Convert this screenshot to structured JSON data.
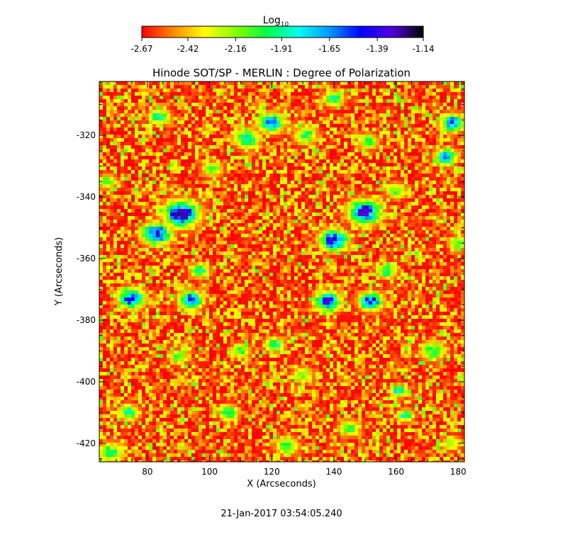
{
  "chart_data": {
    "type": "heatmap",
    "title": "Hinode SOT/SP - MERLIN : Degree of Polarization",
    "xlabel": "X (Arcseconds)",
    "ylabel": "Y (Arcseconds)",
    "timestamp": "21-Jan-2017 03:54:05.240",
    "xlim": [
      64.5,
      182
    ],
    "ylim": [
      -426,
      -302.5
    ],
    "x_ticks": [
      80,
      100,
      120,
      140,
      160,
      180
    ],
    "x_tick_labels": [
      "80",
      "100",
      "120",
      "140",
      "160",
      "180"
    ],
    "y_ticks": [
      -320,
      -340,
      -360,
      -380,
      -400,
      -420
    ],
    "y_tick_labels": [
      "-320",
      "-340",
      "-360",
      "-380",
      "-400",
      "-420"
    ],
    "colorbar": {
      "label": "Log",
      "label_subscript": "10",
      "range": [
        -2.67,
        -1.14
      ],
      "ticks": [
        -2.67,
        -2.42,
        -2.16,
        -1.91,
        -1.65,
        -1.39,
        -1.14
      ],
      "tick_labels": [
        "-2.67",
        "-2.42",
        "-2.16",
        "-1.91",
        "-1.65",
        "-1.39",
        "-1.14"
      ],
      "colormap": [
        "#ff0000",
        "#ff8800",
        "#ffff00",
        "#88ff00",
        "#00ff44",
        "#00ffee",
        "#0099ff",
        "#0000ff",
        "#5500dd",
        "#000000"
      ]
    },
    "background_range": [
      -2.67,
      -2.25
    ],
    "features": [
      {
        "x": 91,
        "y": -345.5,
        "value": -1.25,
        "size": 3.2
      },
      {
        "x": 83,
        "y": -352,
        "value": -1.3,
        "size": 2.6
      },
      {
        "x": 75,
        "y": -373,
        "value": -1.35,
        "size": 2.4
      },
      {
        "x": 94,
        "y": -373.5,
        "value": -1.4,
        "size": 2.2
      },
      {
        "x": 140,
        "y": -354,
        "value": -1.3,
        "size": 2.6
      },
      {
        "x": 150,
        "y": -345,
        "value": -1.3,
        "size": 3.0
      },
      {
        "x": 138,
        "y": -374,
        "value": -1.35,
        "size": 2.4
      },
      {
        "x": 152,
        "y": -374,
        "value": -1.4,
        "size": 2.2
      },
      {
        "x": 120,
        "y": -316,
        "value": -1.55,
        "size": 2.4
      },
      {
        "x": 178,
        "y": -316,
        "value": -1.5,
        "size": 2.2
      },
      {
        "x": 176,
        "y": -327,
        "value": -1.6,
        "size": 2.0
      },
      {
        "x": 112,
        "y": -321,
        "value": -1.75,
        "size": 2.4
      },
      {
        "x": 84,
        "y": -314,
        "value": -1.85,
        "size": 2.0
      },
      {
        "x": 140,
        "y": -308,
        "value": -1.9,
        "size": 2.0
      },
      {
        "x": 131,
        "y": -320,
        "value": -1.95,
        "size": 2.2
      },
      {
        "x": 157,
        "y": -364,
        "value": -1.85,
        "size": 1.8
      },
      {
        "x": 172,
        "y": -390,
        "value": -1.95,
        "size": 2.4
      },
      {
        "x": 121,
        "y": -388,
        "value": -1.85,
        "size": 1.8
      },
      {
        "x": 97,
        "y": -364,
        "value": -1.9,
        "size": 1.8
      },
      {
        "x": 74,
        "y": -410,
        "value": -1.9,
        "size": 2.0
      },
      {
        "x": 68,
        "y": -423,
        "value": -1.95,
        "size": 2.4
      },
      {
        "x": 125,
        "y": -421,
        "value": -2.0,
        "size": 2.2
      },
      {
        "x": 106,
        "y": -410,
        "value": -1.8,
        "size": 1.8
      },
      {
        "x": 161,
        "y": -403,
        "value": -1.75,
        "size": 1.6
      },
      {
        "x": 163,
        "y": -411,
        "value": -1.85,
        "size": 1.6
      },
      {
        "x": 110,
        "y": -390,
        "value": -2.0,
        "size": 1.8
      },
      {
        "x": 151,
        "y": -322,
        "value": -2.0,
        "size": 2.0
      },
      {
        "x": 101,
        "y": -331,
        "value": -2.05,
        "size": 2.0
      },
      {
        "x": 160,
        "y": -338,
        "value": -2.05,
        "size": 2.0
      },
      {
        "x": 67,
        "y": -335,
        "value": -2.05,
        "size": 1.8
      },
      {
        "x": 180,
        "y": -355,
        "value": -2.05,
        "size": 1.8
      },
      {
        "x": 130,
        "y": -398,
        "value": -2.1,
        "size": 2.0
      },
      {
        "x": 90,
        "y": -392,
        "value": -2.05,
        "size": 1.8
      },
      {
        "x": 145,
        "y": -415,
        "value": -2.05,
        "size": 2.0
      },
      {
        "x": 178,
        "y": -420,
        "value": -2.1,
        "size": 1.8
      }
    ]
  }
}
